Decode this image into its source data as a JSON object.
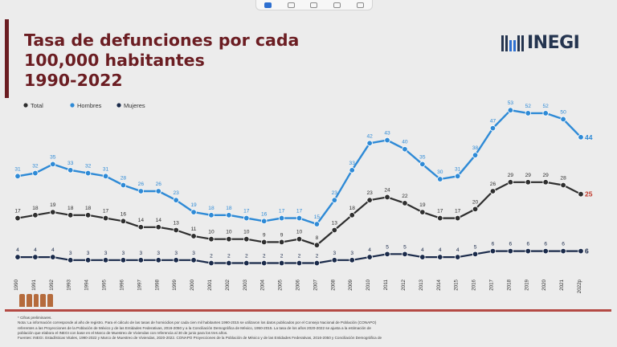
{
  "title": "Tasa de defunciones por cada\n100,000 habitantes\n1990-2022",
  "logo": {
    "text": "INEGI"
  },
  "toolbar": {
    "icons": [
      "select-icon",
      "copy-icon",
      "paste-icon",
      "duplicate-icon",
      "close-icon"
    ]
  },
  "colors": {
    "total": "#2e2e2e",
    "hombres": "#2e8ad6",
    "mujeres": "#1a2a4a",
    "title": "#6b1d22"
  },
  "chart_data": {
    "type": "line",
    "title": "",
    "legend_position": "top-left",
    "categories": [
      "1990",
      "1991",
      "1992",
      "1993",
      "1994",
      "1995",
      "1996",
      "1997",
      "1998",
      "1999",
      "2000",
      "2001",
      "2002",
      "2003",
      "2004",
      "2005",
      "2006",
      "2007",
      "2008",
      "2009",
      "2010",
      "2011",
      "2012",
      "2013",
      "2014",
      "2015",
      "2016",
      "2017",
      "2018",
      "2019",
      "2020",
      "2021",
      "2022p"
    ],
    "series": [
      {
        "name": "Total",
        "values": [
          17,
          18,
          19,
          18,
          18,
          17,
          16,
          14,
          14,
          13,
          11,
          10,
          10,
          10,
          9,
          9,
          10,
          8,
          13,
          18,
          23,
          24,
          22,
          19,
          17,
          17,
          20,
          26,
          29,
          29,
          29,
          28,
          25
        ]
      },
      {
        "name": "Hombres",
        "values": [
          31,
          32,
          35,
          33,
          32,
          31,
          28,
          26,
          26,
          23,
          19,
          18,
          18,
          17,
          16,
          17,
          17,
          15,
          23,
          33,
          42,
          43,
          40,
          35,
          30,
          31,
          38,
          47,
          53,
          52,
          52,
          50,
          44
        ]
      },
      {
        "name": "Mujeres",
        "values": [
          4,
          4,
          4,
          3,
          3,
          3,
          3,
          3,
          3,
          3,
          3,
          2,
          2,
          2,
          2,
          2,
          2,
          2,
          3,
          3,
          4,
          5,
          5,
          4,
          4,
          4,
          5,
          6,
          6,
          6,
          6,
          6,
          6
        ]
      }
    ],
    "ylim": [
      0,
      56
    ]
  },
  "notes": [
    "* Cifras preliminares.",
    "Nota: La información corresponde al año de registro. Para el cálculo de las tasas de homicidios por cada cien mil habitantes 1990-2015 se utilizaron los datos publicados por el Consejo Nacional de Población (CONAPO)",
    "referentes a las Proyecciones de la Población de México y de las Entidades Federativas, 2016-2050 y a la Conciliación Demográfica de México, 1950-2015. La tasa de los años 2020-2022 se ajusta a la estimación de",
    "población que elabora el INEGI con base en el Marco de Muestreo de Viviendas con referencia al 30 de junio para los tres años.",
    "Fuentes: INEGI. Estadísticas Vitales, 1990-2022 y Marco de Muestreo de Viviendas, 2020-2022. CONAPO Proyecciones de la Población de México y de las Entidades Federativas, 2016-2050 y Conciliación Demográfica de"
  ]
}
